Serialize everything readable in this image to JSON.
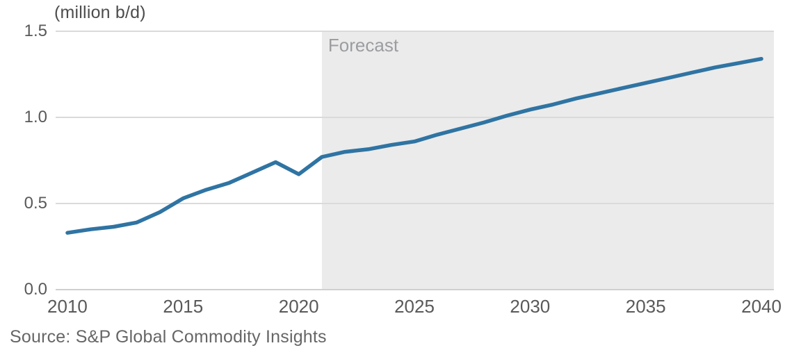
{
  "header": {
    "unit_label": "(million b/d)"
  },
  "chart_data": {
    "type": "line",
    "title": "",
    "ylabel": "(million b/d)",
    "xlabel": "",
    "grid": true,
    "legend": "none",
    "x": [
      2010,
      2011,
      2012,
      2013,
      2014,
      2015,
      2016,
      2017,
      2018,
      2019,
      2020,
      2021,
      2022,
      2023,
      2024,
      2025,
      2026,
      2027,
      2028,
      2029,
      2030,
      2031,
      2032,
      2033,
      2034,
      2035,
      2036,
      2037,
      2038,
      2039,
      2040
    ],
    "values": [
      0.33,
      0.35,
      0.365,
      0.39,
      0.45,
      0.53,
      0.58,
      0.62,
      0.68,
      0.74,
      0.67,
      0.77,
      0.8,
      0.815,
      0.84,
      0.86,
      0.9,
      0.935,
      0.97,
      1.01,
      1.045,
      1.075,
      1.11,
      1.14,
      1.17,
      1.2,
      1.23,
      1.26,
      1.29,
      1.315,
      1.34
    ],
    "xlim": [
      2009.49,
      2040.54
    ],
    "ylim": [
      0,
      1.5
    ],
    "xtick_values": [
      2010,
      2015,
      2020,
      2025,
      2030,
      2035,
      2040
    ],
    "xtick_labels": [
      "2010",
      "2015",
      "2020",
      "2025",
      "2030",
      "2035",
      "2040"
    ],
    "ytick_values": [
      0.0,
      0.5,
      1.0,
      1.5
    ],
    "ytick_labels": [
      "0.0",
      "0.5",
      "1.0",
      "1.5"
    ],
    "forecast_start": 2021,
    "forecast_label": "Forecast",
    "line_color": "#2f74a3",
    "band_color": "#ebebeb",
    "gridline_color": "#dadada"
  },
  "footer": {
    "source": "Source: S&P Global Commodity Insights"
  }
}
